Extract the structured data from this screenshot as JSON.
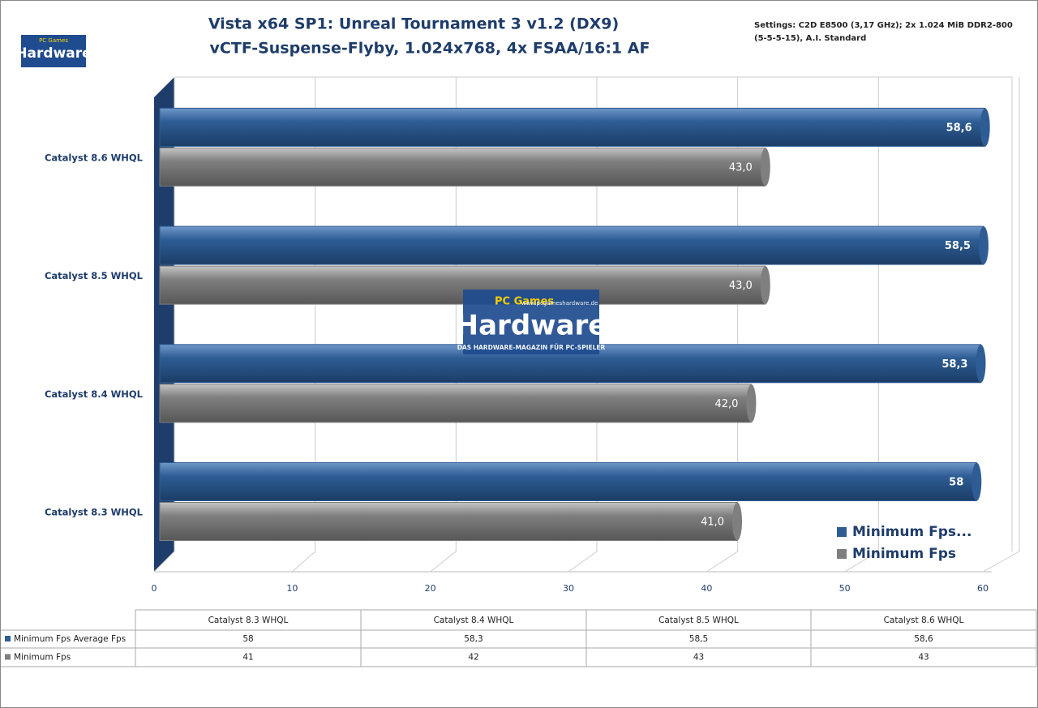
{
  "logo": {
    "prefix": "PC Games",
    "brand": "Hardware",
    "url": "www.pcgameshardware.de",
    "tagline": "DAS HARDWARE-MAGAZIN FÜR PC-SPIELER"
  },
  "chart_data": {
    "type": "bar",
    "orientation": "horizontal",
    "title": [
      "Vista x64 SP1: Unreal Tournament 3 v1.2 (DX9)",
      "vCTF-Suspense-Flyby, 1.024x768, 4x FSAA/16:1 AF"
    ],
    "annotation": [
      "Settings: C2D E8500 (3,17 GHz);  2x 1.024 MiB DDR2-800",
      "(5-5-5-15), A.I. Standard"
    ],
    "categories": [
      "Catalyst 8.3 WHQL",
      "Catalyst 8.4 WHQL",
      "Catalyst 8.5 WHQL",
      "Catalyst 8.6 WHQL"
    ],
    "series": [
      {
        "name": "Minimum Fps Average Fps",
        "legend_label": "Minimum Fps...",
        "color": "#2e5d95",
        "values": [
          58,
          58.3,
          58.5,
          58.6
        ],
        "value_labels": [
          "58",
          "58,3",
          "58,5",
          "58,6"
        ],
        "table_labels": [
          "58",
          "58,3",
          "58,5",
          "58,6"
        ]
      },
      {
        "name": "Minimum Fps",
        "legend_label": "Minimum Fps",
        "color": "#7f7f7f",
        "values": [
          41,
          42,
          43,
          43
        ],
        "value_labels": [
          "41,0",
          "42,0",
          "43,0",
          "43,0"
        ],
        "table_labels": [
          "41",
          "42",
          "43",
          "43"
        ]
      }
    ],
    "xlim": [
      0,
      60
    ],
    "xticks": [
      0,
      10,
      20,
      30,
      40,
      50,
      60
    ],
    "grid": true,
    "legend": "lower right",
    "data_table": true
  }
}
